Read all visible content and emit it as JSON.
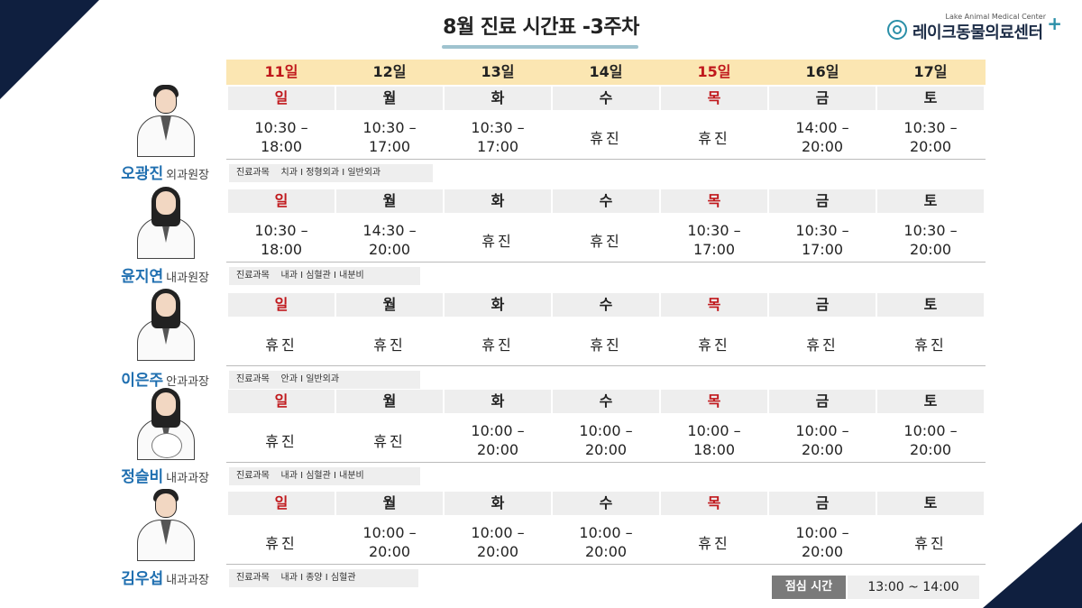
{
  "title": "8월 진료 시간표 -3주차",
  "title_month": "8월",
  "title_rest": " 진료 시간표 -3주차",
  "logo": {
    "en": "Lake Animal Medical Center",
    "ko": "레이크동물의료센터",
    "plus": "+"
  },
  "dates": [
    {
      "label": "11일",
      "red": true
    },
    {
      "label": "12일",
      "red": false
    },
    {
      "label": "13일",
      "red": false
    },
    {
      "label": "14일",
      "red": false
    },
    {
      "label": "15일",
      "red": true
    },
    {
      "label": "16일",
      "red": false
    },
    {
      "label": "17일",
      "red": false
    }
  ],
  "weekdays": [
    {
      "label": "일",
      "red": true
    },
    {
      "label": "월",
      "red": false
    },
    {
      "label": "화",
      "red": false
    },
    {
      "label": "수",
      "red": false
    },
    {
      "label": "목",
      "red": true
    },
    {
      "label": "금",
      "red": false
    },
    {
      "label": "토",
      "red": false
    }
  ],
  "doctors": [
    {
      "name": "오광진",
      "role": "외과원장",
      "specialty": "진료과목    치과 I 정형외과 I 일반외과",
      "hours": [
        "10:30 –\n18:00",
        "10:30 –\n17:00",
        "10:30 –\n17:00",
        "휴진",
        "휴진",
        "14:00 –\n20:00",
        "10:30 –\n20:00"
      ]
    },
    {
      "name": "윤지연",
      "role": "내과원장",
      "specialty": "진료과목    내과 I 심혈관 I 내분비",
      "hours": [
        "10:30 –\n18:00",
        "14:30 –\n20:00",
        "휴진",
        "휴진",
        "10:30 –\n17:00",
        "10:30 –\n17:00",
        "10:30 –\n20:00"
      ]
    },
    {
      "name": "이은주",
      "role": "안과과장",
      "specialty": "진료과목    안과 I 일반외과",
      "hours": [
        "휴진",
        "휴진",
        "휴진",
        "휴진",
        "휴진",
        "휴진",
        "휴진"
      ]
    },
    {
      "name": "정슬비",
      "role": "내과과장",
      "specialty": "진료과목    내과 I 심혈관 I 내분비",
      "hours": [
        "휴진",
        "휴진",
        "10:00 –\n20:00",
        "10:00 –\n20:00",
        "10:00 –\n18:00",
        "10:00 –\n20:00",
        "10:00 –\n20:00"
      ]
    },
    {
      "name": "김우섭",
      "role": "내과과장",
      "specialty": "진료과목    내과 I 종양 I 심혈관",
      "hours": [
        "휴진",
        "10:00 –\n20:00",
        "10:00 –\n20:00",
        "10:00 –\n20:00",
        "휴진",
        "10:00 –\n20:00",
        "휴진"
      ]
    }
  ],
  "lunch": {
    "label": "점심 시간",
    "time": "13:00 ~ 14:00"
  },
  "colors": {
    "navy": "#0f1f3f",
    "red_day": "#c0181c",
    "name_blue": "#1f6fb0",
    "date_band": "#fbe6b2",
    "accent_teal": "#2a8fa8"
  }
}
